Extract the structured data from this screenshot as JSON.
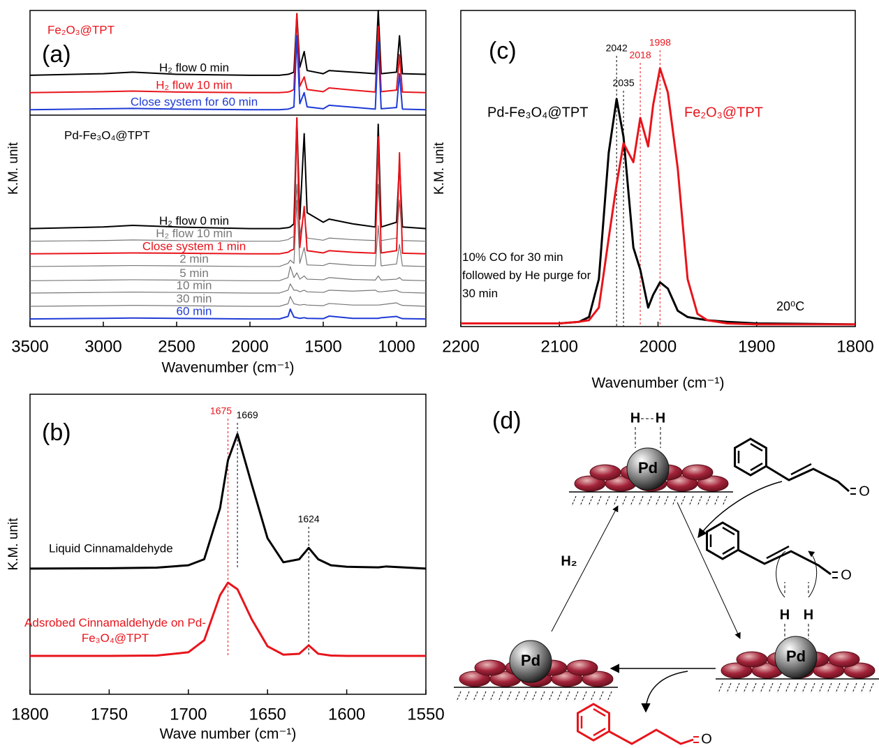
{
  "chart_data": [
    {
      "type": "line",
      "panel_label": "(a)",
      "xlabel": "Wavenumber (cm⁻¹)",
      "ylabel": "K.M. unit",
      "xlim": [
        3500,
        800
      ],
      "xticks": [
        3500,
        3000,
        2500,
        2000,
        1500,
        1000
      ],
      "ylim": [
        0,
        100
      ],
      "annotations": [
        {
          "text": "Fe₂O₃@TPT",
          "color": "#e8141b"
        },
        {
          "text": "Pd-Fe₃O₄@TPT",
          "color": "#000000"
        }
      ],
      "x": [
        3500,
        3000,
        2800,
        2500,
        2000,
        1800,
        1740,
        1725,
        1700,
        1680,
        1660,
        1630,
        1610,
        1500,
        1460,
        1300,
        1145,
        1125,
        1105,
        1000,
        980,
        960,
        800
      ],
      "series": [
        {
          "name": "H₂ flow 0 min",
          "color": "#000000",
          "values": [
            79.5,
            80,
            80.5,
            79.8,
            79.5,
            79.5,
            79.8,
            80,
            80.5,
            99,
            82,
            87,
            81,
            80,
            81,
            80.5,
            80,
            100,
            80,
            80.5,
            92,
            80,
            79.8
          ]
        },
        {
          "name": "H₂ flow 10 min",
          "color": "#e8141b",
          "values": [
            74,
            74.3,
            74.5,
            74.2,
            74,
            74,
            74.2,
            74.4,
            75,
            99,
            76,
            79,
            75,
            74.3,
            75.5,
            74.8,
            74.2,
            95,
            74.3,
            74.8,
            86,
            74.2,
            74
          ]
        },
        {
          "name": "Close system for 60 min",
          "color": "#1f3bd6",
          "values": [
            68.6,
            68.9,
            69,
            68.8,
            68.6,
            68.6,
            68.8,
            69,
            69.5,
            92,
            70.5,
            74,
            69.5,
            68.9,
            70,
            69.4,
            68.8,
            90,
            68.9,
            69.3,
            80,
            68.8,
            68.6
          ]
        },
        {
          "name": "H₂ flow 0 min",
          "color": "#000000",
          "values": [
            31,
            31.5,
            32,
            31.5,
            31,
            31,
            31.3,
            31.5,
            32.5,
            66,
            34,
            61,
            36,
            33,
            34,
            32.5,
            31.5,
            64,
            31.5,
            33,
            52,
            31.5,
            31
          ]
        },
        {
          "name": "H₂ flow 10 min",
          "color": "#777777",
          "values": [
            27,
            27.2,
            27.4,
            27.2,
            27,
            27,
            27.5,
            28,
            28.5,
            45,
            29,
            36,
            28,
            27.3,
            28,
            27.5,
            27.2,
            45,
            27.2,
            28,
            40,
            27.2,
            27
          ]
        },
        {
          "name": "Close system 1 min",
          "color": "#e8141b",
          "values": [
            23,
            23.2,
            23.3,
            23.2,
            23,
            23,
            23.5,
            24,
            24.5,
            66,
            25,
            38,
            24,
            23.3,
            24,
            23.5,
            23.2,
            60,
            23.3,
            24,
            55,
            23.2,
            23
          ]
        },
        {
          "name": "2 min",
          "color": "#777777",
          "values": [
            19,
            19.2,
            19.3,
            19.2,
            19,
            19,
            20,
            21,
            20,
            40,
            20,
            25,
            19.5,
            19.3,
            20,
            19.4,
            19.2,
            32,
            19.2,
            19.8,
            26,
            19.2,
            19
          ]
        },
        {
          "name": "5 min",
          "color": "#777777",
          "values": [
            14.5,
            14.7,
            14.8,
            14.7,
            14.5,
            14.5,
            15.5,
            19,
            15.5,
            17,
            15,
            16,
            15,
            14.8,
            15.5,
            14.9,
            14.7,
            16,
            14.7,
            15,
            15.5,
            14.7,
            14.5
          ]
        },
        {
          "name": "10 min",
          "color": "#777777",
          "values": [
            10.6,
            10.8,
            10.9,
            10.8,
            10.6,
            10.6,
            11.5,
            13.5,
            11.5,
            11.5,
            11,
            11.5,
            11,
            10.8,
            11.5,
            11.2,
            11.5,
            11,
            11,
            11.5,
            11,
            10.8,
            10.6
          ]
        },
        {
          "name": "30 min",
          "color": "#777777",
          "values": [
            6.4,
            6.6,
            6.7,
            6.6,
            6.4,
            6.4,
            7.2,
            9.5,
            7.2,
            7,
            6.8,
            7,
            6.8,
            6.6,
            7.3,
            6.8,
            6.8,
            6.8,
            6.9,
            7.5,
            7,
            6.7,
            6.4
          ]
        },
        {
          "name": "60 min",
          "color": "#1f3bd6",
          "values": [
            2.4,
            2.6,
            2.7,
            2.6,
            2.4,
            2.4,
            3.2,
            5.5,
            3,
            2.8,
            2.6,
            2.8,
            2.6,
            2.5,
            3.3,
            2.6,
            2.6,
            2.6,
            2.8,
            3.2,
            2.8,
            2.5,
            2.4
          ]
        }
      ]
    },
    {
      "type": "line",
      "panel_label": "(b)",
      "xlabel": "Wave number (cm⁻¹)",
      "ylabel": "K.M. unit",
      "xlim": [
        1800,
        1550
      ],
      "xticks": [
        1800,
        1750,
        1700,
        1650,
        1600,
        1550
      ],
      "ylim": [
        0,
        100
      ],
      "peaks": [
        {
          "value": 1675,
          "color": "#e8141b"
        },
        {
          "value": 1669,
          "color": "#000000"
        },
        {
          "value": 1624,
          "color": "#000000"
        }
      ],
      "x": [
        1800,
        1750,
        1720,
        1700,
        1690,
        1680,
        1675,
        1669,
        1660,
        1650,
        1640,
        1630,
        1624,
        1618,
        1610,
        1600,
        1580,
        1575,
        1550
      ],
      "series": [
        {
          "name": "Liquid Cinnamaldehyde",
          "color": "#000000",
          "values": [
            41.9,
            42,
            42.2,
            43,
            45,
            62,
            78,
            86.7,
            70,
            52,
            44,
            45,
            48.8,
            45,
            43,
            42.5,
            42.3,
            42.6,
            41.9
          ]
        },
        {
          "name": "Adsrobed Cinnamaldehyde on Pd-Fe₃O₄@TPT",
          "color": "#e8141b",
          "values": [
            12.8,
            12.8,
            12.9,
            14,
            18,
            33,
            37.2,
            35,
            25,
            16,
            13.2,
            13.5,
            16.3,
            13.5,
            12.9,
            12.8,
            12.8,
            12.8,
            12.8
          ]
        }
      ]
    },
    {
      "type": "line",
      "panel_label": "(c)",
      "xlabel": "Wavenumber (cm⁻¹)",
      "ylabel": "K.M. unit",
      "xlim": [
        2200,
        1800
      ],
      "xticks": [
        2200,
        2100,
        2000,
        1900,
        1800
      ],
      "ylim": [
        0,
        100
      ],
      "annotations": [
        {
          "text": "10% CO for 30 min followed by He purge for 30 min",
          "color": "#000000"
        },
        {
          "text": "20⁰C",
          "color": "#000000"
        }
      ],
      "peaks": [
        {
          "value": 2042,
          "color": "#000000"
        },
        {
          "value": 2035,
          "color": "#000000"
        },
        {
          "value": 2018,
          "color": "#e8141b"
        },
        {
          "value": 1998,
          "color": "#e8141b"
        }
      ],
      "x": [
        2200,
        2100,
        2080,
        2070,
        2060,
        2050,
        2042,
        2035,
        2025,
        2018,
        2010,
        2005,
        1998,
        1990,
        1980,
        1970,
        1960,
        1950,
        1930,
        1900,
        1800
      ],
      "series": [
        {
          "name": "Pd-Fe₃O₄@TPT",
          "color": "#000000",
          "values": [
            1,
            1,
            1.5,
            3,
            15,
            55,
            72,
            60,
            25,
            18,
            6,
            10,
            14,
            12,
            5,
            3,
            2.5,
            2,
            1.5,
            1,
            0.7
          ]
        },
        {
          "name": "Fe₂O₃@TPT",
          "color": "#e8141b",
          "values": [
            1,
            1,
            1.5,
            2,
            6,
            28,
            45,
            58,
            52,
            66,
            57,
            70,
            81.7,
            74,
            50,
            15,
            4,
            2,
            1,
            0.7,
            0.7
          ]
        }
      ]
    }
  ],
  "diagram": {
    "panel_label": "(d)",
    "catalyst": "Pd",
    "hydrogen": "H",
    "h2": "H₂",
    "oxygen": "O"
  }
}
